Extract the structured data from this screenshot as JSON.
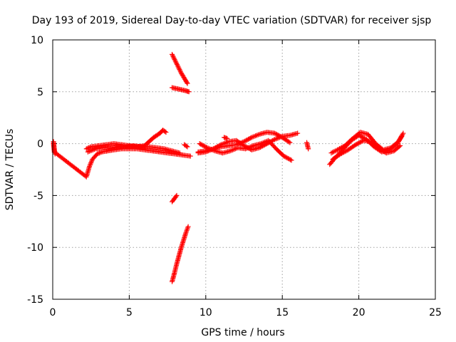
{
  "chart_data": {
    "type": "scatter",
    "title": "Day 193 of 2019, Sidereal Day-to-day VTEC variation (SDTVAR) for receiver sjsp",
    "xlabel": "GPS time / hours",
    "ylabel": "SDTVAR / TECUs",
    "xlim": [
      0,
      25
    ],
    "ylim": [
      -15,
      10
    ],
    "xticks": [
      "0",
      "5",
      "10",
      "15",
      "20",
      "25"
    ],
    "yticks": [
      "-15",
      "-10",
      "-5",
      "0",
      "5",
      "10"
    ],
    "grid": true,
    "marker": "+",
    "color": "#ff0000",
    "series": [
      {
        "x": [
          0.05,
          0.1,
          0.15,
          0.05,
          0.1,
          2.2,
          2.4,
          2.6,
          2.9,
          3.2,
          3.6,
          4.0,
          4.5,
          5.0,
          5.5,
          6.0,
          6.5,
          7.0,
          7.5,
          8.0,
          8.5,
          9.0
        ],
        "y": [
          0.2,
          -0.5,
          -1.0,
          0.0,
          -0.8,
          -3.2,
          -2.2,
          -1.5,
          -1.0,
          -0.8,
          -0.7,
          -0.6,
          -0.5,
          -0.5,
          -0.5,
          -0.6,
          -0.7,
          -0.8,
          -0.9,
          -1.0,
          -1.1,
          -1.2
        ]
      },
      {
        "x": [
          2.2,
          2.5,
          3.0,
          3.5,
          4.0,
          4.5,
          5.0,
          5.5,
          6.0,
          6.3,
          6.6,
          7.0,
          7.2,
          7.4
        ],
        "y": [
          -0.5,
          -0.3,
          -0.2,
          -0.1,
          0.0,
          -0.1,
          -0.2,
          -0.3,
          -0.2,
          0.2,
          0.6,
          1.0,
          1.3,
          1.1
        ]
      },
      {
        "x": [
          2.3,
          2.8,
          3.3,
          3.8,
          4.3,
          4.8,
          5.3,
          5.8,
          6.3,
          6.8,
          7.3,
          7.8,
          8.3
        ],
        "y": [
          -0.8,
          -0.5,
          -0.4,
          -0.4,
          -0.3,
          -0.3,
          -0.2,
          -0.3,
          -0.3,
          -0.4,
          -0.5,
          -0.7,
          -0.9
        ]
      },
      {
        "x": [
          7.8,
          8.0,
          8.2,
          8.4,
          8.6,
          8.8
        ],
        "y": [
          8.6,
          8.0,
          7.4,
          6.8,
          6.3,
          5.8
        ]
      },
      {
        "x": [
          7.8,
          8.1,
          8.4,
          8.7,
          8.9
        ],
        "y": [
          5.4,
          5.3,
          5.2,
          5.1,
          5.0
        ]
      },
      {
        "x": [
          7.8,
          7.9,
          8.0,
          8.1
        ],
        "y": [
          -5.6,
          -5.4,
          -5.2,
          -5.0
        ]
      },
      {
        "x": [
          7.8,
          7.95,
          8.1,
          8.25,
          8.4,
          8.55,
          8.7,
          8.85
        ],
        "y": [
          -13.3,
          -12.5,
          -11.6,
          -10.8,
          -10.0,
          -9.3,
          -8.6,
          -8.0
        ]
      },
      {
        "x": [
          8.6,
          8.8
        ],
        "y": [
          -0.1,
          -0.3
        ]
      },
      {
        "x": [
          9.5,
          10.0,
          10.5,
          11.0,
          11.5,
          12.0,
          12.5,
          13.0,
          13.5,
          14.0,
          14.5,
          15.0,
          15.5
        ],
        "y": [
          -0.8,
          -0.7,
          -0.5,
          -0.3,
          -0.2,
          -0.1,
          0.2,
          0.6,
          0.9,
          1.1,
          1.0,
          0.6,
          0.1
        ]
      },
      {
        "x": [
          9.6,
          10.1,
          10.6,
          11.1,
          11.6,
          12.1,
          12.6,
          13.1,
          13.6,
          14.1,
          14.6,
          15.1,
          15.6
        ],
        "y": [
          0.0,
          -0.4,
          -0.7,
          -0.9,
          -0.7,
          -0.4,
          -0.5,
          -0.2,
          0.0,
          0.3,
          -0.5,
          -1.2,
          -1.6
        ]
      },
      {
        "x": [
          9.5,
          10.0,
          10.5,
          11.0,
          11.5,
          12.0,
          12.5,
          13.0,
          13.5,
          14.0,
          14.5,
          15.0,
          15.5,
          16.0
        ],
        "y": [
          -0.9,
          -0.8,
          -0.5,
          -0.1,
          0.2,
          0.3,
          -0.2,
          -0.6,
          -0.4,
          0.0,
          0.4,
          0.7,
          0.8,
          1.0
        ]
      },
      {
        "x": [
          11.2,
          11.4
        ],
        "y": [
          0.6,
          0.5
        ]
      },
      {
        "x": [
          16.6,
          16.7
        ],
        "y": [
          0.1,
          -0.5
        ]
      },
      {
        "x": [
          18.1,
          18.5,
          19.0,
          19.5,
          20.0,
          20.5,
          21.0,
          21.5,
          22.0,
          22.5,
          22.8
        ],
        "y": [
          -2.0,
          -1.3,
          -0.5,
          0.3,
          0.8,
          0.4,
          -0.3,
          -0.8,
          -0.6,
          0.0,
          0.7
        ]
      },
      {
        "x": [
          18.2,
          18.6,
          19.1,
          19.6,
          20.1,
          20.6,
          21.1,
          21.6,
          22.1,
          22.6,
          22.9
        ],
        "y": [
          -0.9,
          -0.6,
          -0.2,
          0.5,
          1.1,
          0.9,
          0.0,
          -0.6,
          -0.4,
          0.2,
          1.0
        ]
      },
      {
        "x": [
          18.3,
          18.8,
          19.3,
          19.8,
          20.3,
          20.8,
          21.3,
          21.8,
          22.3,
          22.7
        ],
        "y": [
          -1.5,
          -1.0,
          -0.6,
          -0.1,
          0.3,
          0.2,
          -0.5,
          -0.9,
          -0.7,
          -0.2
        ]
      }
    ]
  }
}
